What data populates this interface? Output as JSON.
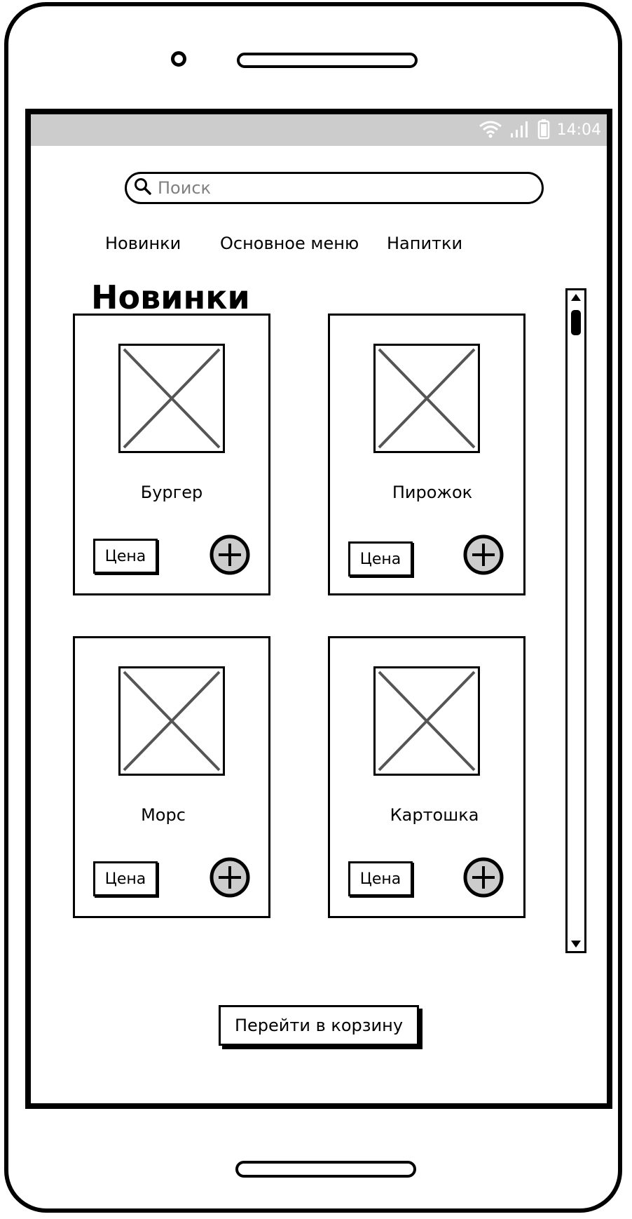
{
  "status_bar": {
    "time": "14:04",
    "icons": [
      "wifi-icon",
      "signal-icon",
      "battery-icon"
    ]
  },
  "search": {
    "placeholder": "Поиск",
    "icon": "search-icon"
  },
  "tabs": [
    {
      "label": "Новинки"
    },
    {
      "label": "Основное меню"
    },
    {
      "label": "Напитки"
    }
  ],
  "section": {
    "title": "Новинки"
  },
  "products": [
    {
      "name": "Бургер",
      "price_label": "Цена",
      "icon": "image-placeholder-icon",
      "add_icon": "plus-circle-icon"
    },
    {
      "name": "Пирожок",
      "price_label": "Цена",
      "icon": "image-placeholder-icon",
      "add_icon": "plus-circle-icon"
    },
    {
      "name": "Морс",
      "price_label": "Цена",
      "icon": "image-placeholder-icon",
      "add_icon": "plus-circle-icon"
    },
    {
      "name": "Картошка",
      "price_label": "Цена",
      "icon": "image-placeholder-icon",
      "add_icon": "plus-circle-icon"
    }
  ],
  "cart": {
    "button_label": "Перейти в корзину"
  },
  "colors": {
    "status_bar_bg": "#cccccc",
    "outline": "#000000",
    "placeholder_cross": "#555555",
    "add_button_fill": "#cccccc"
  }
}
